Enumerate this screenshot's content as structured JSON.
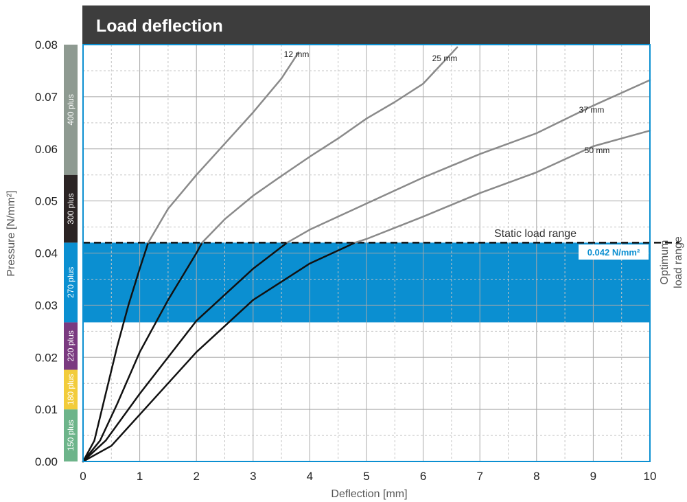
{
  "chart_data": {
    "type": "line",
    "title": "Load deflection",
    "xlabel": "Deflection [mm]",
    "ylabel": "Pressure [N/mm²]",
    "xlim": [
      0,
      10
    ],
    "ylim": [
      0,
      0.08
    ],
    "x_ticks": [
      "0",
      "1",
      "2",
      "3",
      "4",
      "5",
      "6",
      "7",
      "8",
      "9",
      "10"
    ],
    "y_ticks": [
      "0.00",
      "0.01",
      "0.02",
      "0.03",
      "0.04",
      "0.05",
      "0.06",
      "0.07",
      "0.08"
    ],
    "grid": true,
    "static_load_value": 0.042,
    "static_load_label": "Static load range",
    "static_load_value_label": "0.042 N/mm²",
    "optimum_range": [
      0.0267,
      0.042
    ],
    "optimum_label_line1": "Optimum",
    "optimum_label_line2": "load range",
    "material_bands": [
      {
        "label": "150 plus",
        "from": 0.0,
        "to": 0.01,
        "color": "#6db48a"
      },
      {
        "label": "180 plus",
        "from": 0.01,
        "to": 0.0176,
        "color": "#f2cc3b"
      },
      {
        "label": "220 plus",
        "from": 0.0176,
        "to": 0.0267,
        "color": "#7a3a80"
      },
      {
        "label": "270 plus",
        "from": 0.0267,
        "to": 0.042,
        "color": "#0b8fd1"
      },
      {
        "label": "300 plus",
        "from": 0.042,
        "to": 0.055,
        "color": "#2b2424"
      },
      {
        "label": "400 plus",
        "from": 0.055,
        "to": 0.08,
        "color": "#8e9a91"
      }
    ],
    "series": [
      {
        "name": "12 mm",
        "x": [
          0,
          0.2,
          0.4,
          0.6,
          0.8,
          1.0,
          1.15,
          1.5,
          2.0,
          2.5,
          3.0,
          3.5,
          3.8
        ],
        "y": [
          0,
          0.004,
          0.013,
          0.022,
          0.03,
          0.037,
          0.042,
          0.0485,
          0.055,
          0.061,
          0.067,
          0.0735,
          0.0785
        ]
      },
      {
        "name": "25 mm",
        "x": [
          0,
          0.3,
          0.6,
          1.0,
          1.5,
          2.0,
          2.1,
          2.5,
          3.0,
          3.5,
          4.0,
          4.5,
          5.0,
          5.5,
          6.0,
          6.6
        ],
        "y": [
          0,
          0.004,
          0.011,
          0.021,
          0.031,
          0.04,
          0.042,
          0.0465,
          0.051,
          0.0548,
          0.0585,
          0.062,
          0.0658,
          0.069,
          0.0725,
          0.0795
        ]
      },
      {
        "name": "37 mm",
        "x": [
          0,
          0.4,
          1.0,
          2.0,
          3.0,
          3.6,
          4.0,
          5.0,
          6.0,
          7.0,
          8.0,
          8.6,
          9.0,
          10.0
        ],
        "y": [
          0,
          0.004,
          0.013,
          0.027,
          0.037,
          0.042,
          0.0445,
          0.0495,
          0.0545,
          0.059,
          0.063,
          0.0662,
          0.0683,
          0.0732
        ]
      },
      {
        "name": "50 mm",
        "x": [
          0,
          0.5,
          1.0,
          2.0,
          3.0,
          4.0,
          4.8,
          5.0,
          6.0,
          7.0,
          8.0,
          8.8,
          9.0,
          10.0
        ],
        "y": [
          0,
          0.003,
          0.009,
          0.021,
          0.031,
          0.038,
          0.042,
          0.0427,
          0.047,
          0.0515,
          0.0555,
          0.0595,
          0.0605,
          0.0635
        ]
      }
    ]
  }
}
